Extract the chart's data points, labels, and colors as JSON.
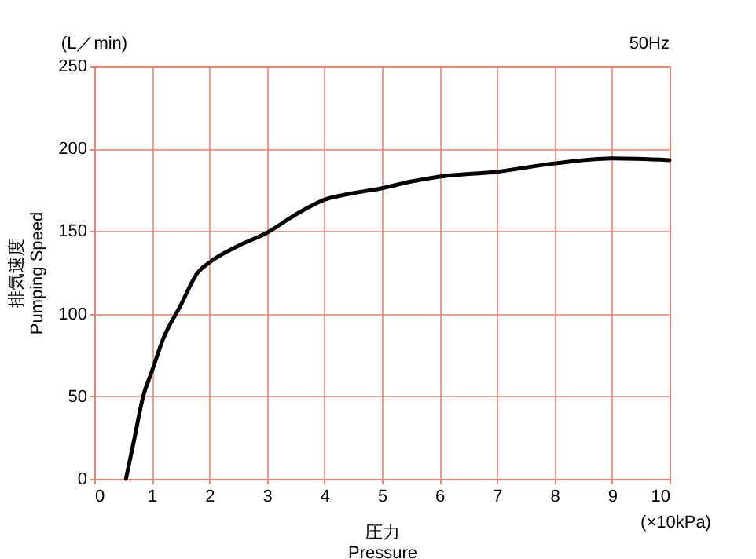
{
  "chart_data": {
    "type": "line",
    "xlabel": "圧力\nPressure",
    "ylabel": "排気速度\nPumping Speed",
    "x": [
      0.55,
      0.7,
      0.85,
      1,
      1.2,
      1.5,
      1.8,
      2,
      2.5,
      3,
      3.5,
      4,
      4.5,
      5,
      5.5,
      6,
      7,
      8,
      9,
      10
    ],
    "series": [
      {
        "color": "#000000",
        "values": [
          0,
          25,
          50,
          65,
          85,
          105,
          125,
          131,
          141,
          149,
          160,
          169,
          173,
          176,
          180,
          183,
          186,
          191,
          194,
          193
        ]
      }
    ],
    "xlim": [
      0,
      10
    ],
    "xticks": [
      0,
      1,
      2,
      3,
      4,
      5,
      6,
      7,
      8,
      9,
      10
    ],
    "ylim": [
      0,
      250
    ],
    "yticks": [
      0,
      50,
      100,
      150,
      200,
      250
    ],
    "grid": true,
    "marker": "none",
    "line_style": "solid",
    "annotations": [
      "(L／min)",
      "50Hz",
      "(×10kPa)"
    ]
  }
}
